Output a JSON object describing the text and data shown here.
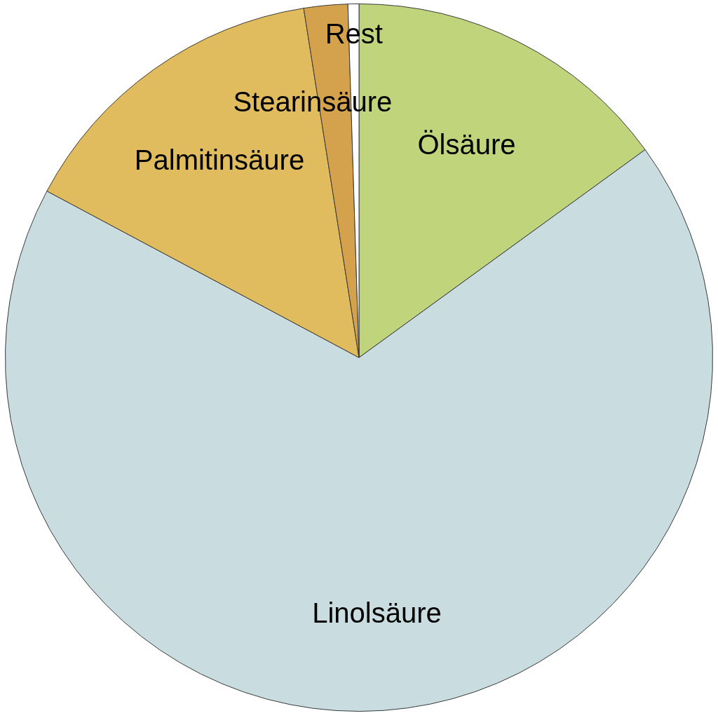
{
  "chart_data": {
    "type": "pie",
    "categories": [
      "Ölsäure",
      "Linolsäure",
      "Palmitinsäure",
      "Stearinsäure",
      "Rest"
    ],
    "values": [
      15,
      67.8,
      14.7,
      2,
      0.5
    ],
    "colors": [
      "#c0d47c",
      "#c9dde0",
      "#e0bc5e",
      "#d4a24c",
      "#ffffff"
    ]
  }
}
